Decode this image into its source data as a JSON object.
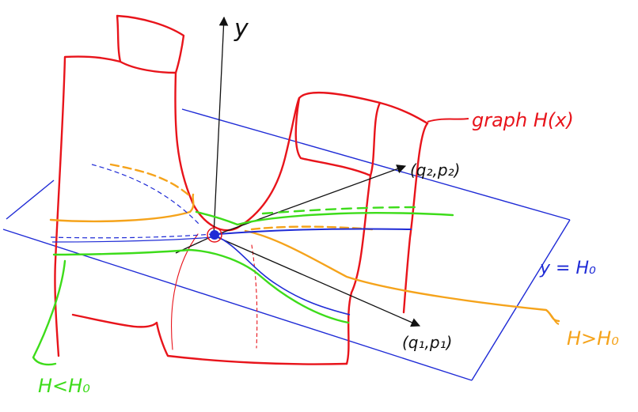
{
  "labels": {
    "y_axis": "y",
    "point_q2_p2": "(q₂,p₂)",
    "point_q1_p1": "(q₁,p₁)",
    "graph": "graph H(x)",
    "plane": "y = H₀",
    "above": "H>H₀",
    "below": "H<H₀"
  },
  "colors": {
    "surface": "#e8141b",
    "plane": "#1f2bd6",
    "axes": "#111111",
    "level_above": "#f5a31b",
    "level_below": "#3ddc1a",
    "critical_point": "#1f2bd6"
  }
}
